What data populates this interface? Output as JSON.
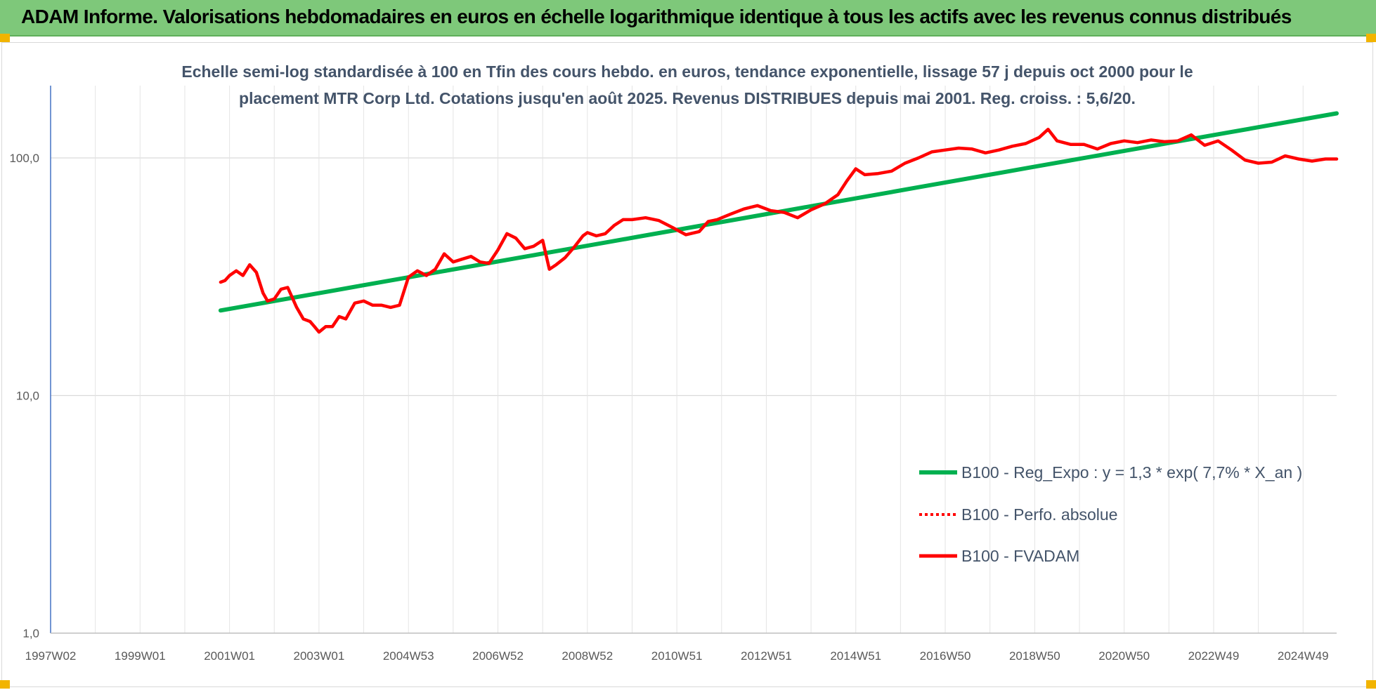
{
  "banner": {
    "title": "ADAM Informe. Valorisations hebdomadaires en euros en échelle logarithmique identique à tous les actifs avec les revenus connus distribués"
  },
  "colors": {
    "banner_bg": "#7ec87a",
    "regression": "#00b050",
    "fvadam": "#ff0000",
    "perfo": "#ff0000",
    "title_text": "#44546a",
    "grid": "#d9d9d9"
  },
  "chart_data": {
    "type": "line",
    "title_lines": [
      "Echelle semi-log standardisée à 100 en Tfin des cours hebdo. en euros, tendance exponentielle, lissage 57 j depuis oct 2000 pour le",
      "placement MTR Corp Ltd. Cotations jusqu'en août 2025. Revenus DISTRIBUES depuis mai 2001. Reg. croiss. : 5,6/20."
    ],
    "y_scale": "log",
    "ylim": [
      1,
      200
    ],
    "y_ticks": [
      {
        "value": 1,
        "label": "1,0"
      },
      {
        "value": 10,
        "label": "10,0"
      },
      {
        "value": 100,
        "label": "100,0"
      }
    ],
    "x_range": [
      1997.0,
      2025.75
    ],
    "x_ticks": [
      {
        "year": 1997.0,
        "label": "1997W02"
      },
      {
        "year": 1999.0,
        "label": "1999W01"
      },
      {
        "year": 2001.0,
        "label": "2001W01"
      },
      {
        "year": 2003.0,
        "label": "2003W01"
      },
      {
        "year": 2005.0,
        "label": "2004W53"
      },
      {
        "year": 2007.0,
        "label": "2006W52"
      },
      {
        "year": 2009.0,
        "label": "2008W52"
      },
      {
        "year": 2011.0,
        "label": "2010W51"
      },
      {
        "year": 2013.0,
        "label": "2012W51"
      },
      {
        "year": 2015.0,
        "label": "2014W51"
      },
      {
        "year": 2017.0,
        "label": "2016W50"
      },
      {
        "year": 2019.0,
        "label": "2018W50"
      },
      {
        "year": 2021.0,
        "label": "2020W50"
      },
      {
        "year": 2023.0,
        "label": "2022W49"
      },
      {
        "year": 2025.0,
        "label": "2024W49"
      }
    ],
    "grid": true,
    "legend_position": "bottom-right",
    "series": [
      {
        "name": "B100 - Reg_Expo : y = 1,3 * exp( 7,7% *  X_an )",
        "style": "solid-thick",
        "x": [
          2000.8,
          2025.75
        ],
        "values": [
          22.8,
          154
        ]
      },
      {
        "name": "B100 - Perfo. absolue",
        "style": "dotted",
        "x": [],
        "values": []
      },
      {
        "name": "B100 - FVADAM",
        "style": "solid",
        "x": [
          2000.8,
          2000.9,
          2001.0,
          2001.15,
          2001.3,
          2001.45,
          2001.6,
          2001.75,
          2001.85,
          2002.0,
          2002.15,
          2002.3,
          2002.5,
          2002.65,
          2002.8,
          2002.9,
          2003.0,
          2003.15,
          2003.3,
          2003.45,
          2003.6,
          2003.8,
          2004.0,
          2004.2,
          2004.4,
          2004.6,
          2004.8,
          2005.0,
          2005.2,
          2005.4,
          2005.6,
          2005.8,
          2006.0,
          2006.2,
          2006.4,
          2006.6,
          2006.8,
          2007.0,
          2007.2,
          2007.4,
          2007.6,
          2007.8,
          2008.0,
          2008.15,
          2008.3,
          2008.5,
          2008.7,
          2008.9,
          2009.0,
          2009.2,
          2009.4,
          2009.6,
          2009.8,
          2010.0,
          2010.3,
          2010.6,
          2010.9,
          2011.2,
          2011.5,
          2011.7,
          2011.9,
          2012.2,
          2012.5,
          2012.8,
          2013.1,
          2013.4,
          2013.7,
          2014.0,
          2014.3,
          2014.6,
          2014.8,
          2015.0,
          2015.2,
          2015.5,
          2015.8,
          2016.1,
          2016.4,
          2016.7,
          2017.0,
          2017.3,
          2017.6,
          2017.9,
          2018.2,
          2018.5,
          2018.8,
          2019.1,
          2019.3,
          2019.5,
          2019.8,
          2020.1,
          2020.4,
          2020.7,
          2021.0,
          2021.3,
          2021.6,
          2021.9,
          2022.2,
          2022.5,
          2022.8,
          2023.1,
          2023.4,
          2023.7,
          2024.0,
          2024.3,
          2024.6,
          2024.9,
          2025.2,
          2025.5,
          2025.75
        ],
        "values": [
          30,
          30.5,
          32,
          33.5,
          32,
          35.5,
          33,
          27,
          25,
          25.5,
          28,
          28.5,
          23.5,
          21,
          20.5,
          19.5,
          18.5,
          19.5,
          19.5,
          21.5,
          21,
          24.5,
          25,
          24,
          24,
          23.5,
          24,
          31.5,
          33.5,
          32,
          34,
          39.5,
          36.5,
          37.5,
          38.5,
          36.5,
          36,
          41,
          48,
          46,
          41.5,
          42.5,
          45,
          34,
          35.5,
          38,
          42,
          47,
          48.5,
          47,
          48,
          52,
          55,
          55,
          56,
          54.5,
          51,
          47.5,
          49,
          54,
          55,
          58,
          61,
          63,
          60,
          59,
          56,
          60.5,
          64,
          70,
          80,
          90,
          85,
          86,
          88,
          95,
          100,
          106,
          108,
          110,
          109,
          105,
          108,
          112,
          115,
          122,
          132,
          118,
          114,
          114,
          109,
          115,
          118,
          116,
          119,
          117,
          118,
          125,
          113,
          118,
          108,
          98,
          95,
          96,
          102,
          99,
          97,
          99,
          99
        ]
      }
    ]
  }
}
